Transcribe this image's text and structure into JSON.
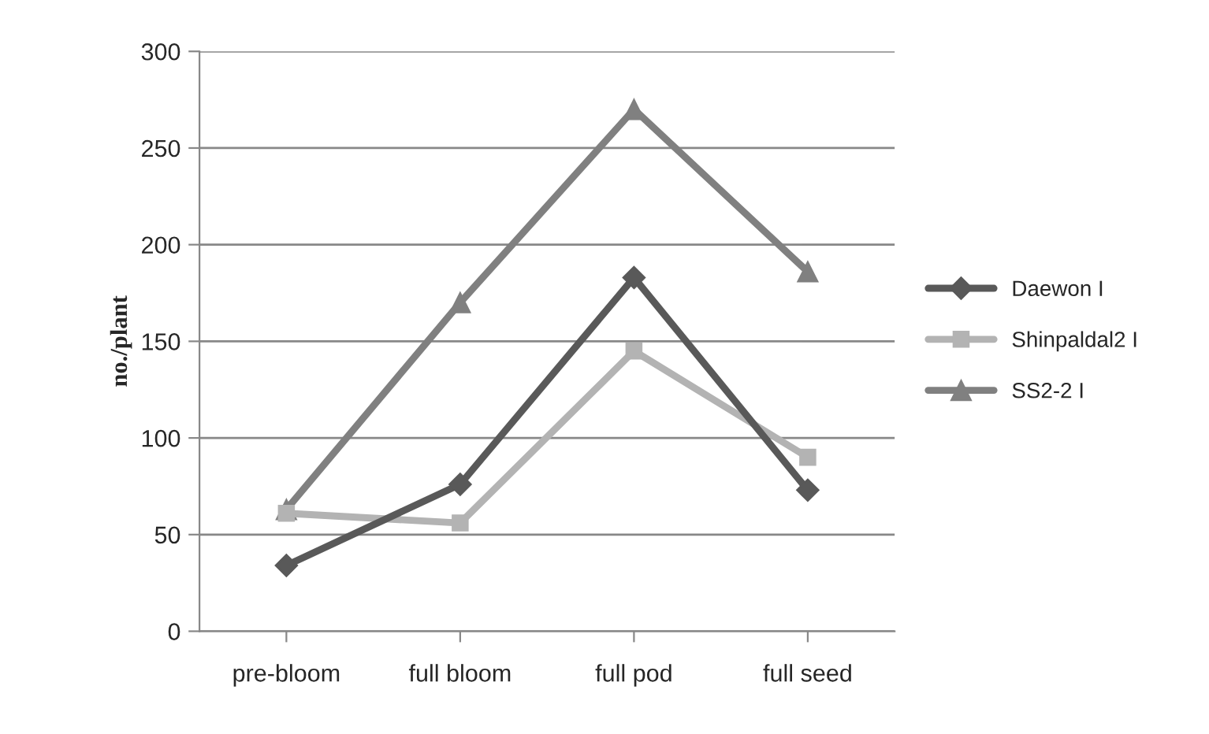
{
  "chart_data": {
    "type": "line",
    "ylabel": "no./plant",
    "categories": [
      "pre-bloom",
      "full bloom",
      "full pod",
      "full seed"
    ],
    "series": [
      {
        "name": "Daewon I",
        "color": "#595959",
        "marker": "diamond",
        "values": [
          34,
          76,
          183,
          73
        ]
      },
      {
        "name": "Shinpaldal2 I",
        "color": "#b3b3b3",
        "marker": "square",
        "values": [
          61,
          56,
          145,
          90
        ]
      },
      {
        "name": "SS2-2 I",
        "color": "#808080",
        "marker": "triangle",
        "values": [
          63,
          170,
          270,
          186
        ]
      }
    ],
    "ylim": [
      0,
      300
    ],
    "yticks": [
      0,
      50,
      100,
      150,
      200,
      250,
      300
    ],
    "grid": "y",
    "legend": "right"
  }
}
